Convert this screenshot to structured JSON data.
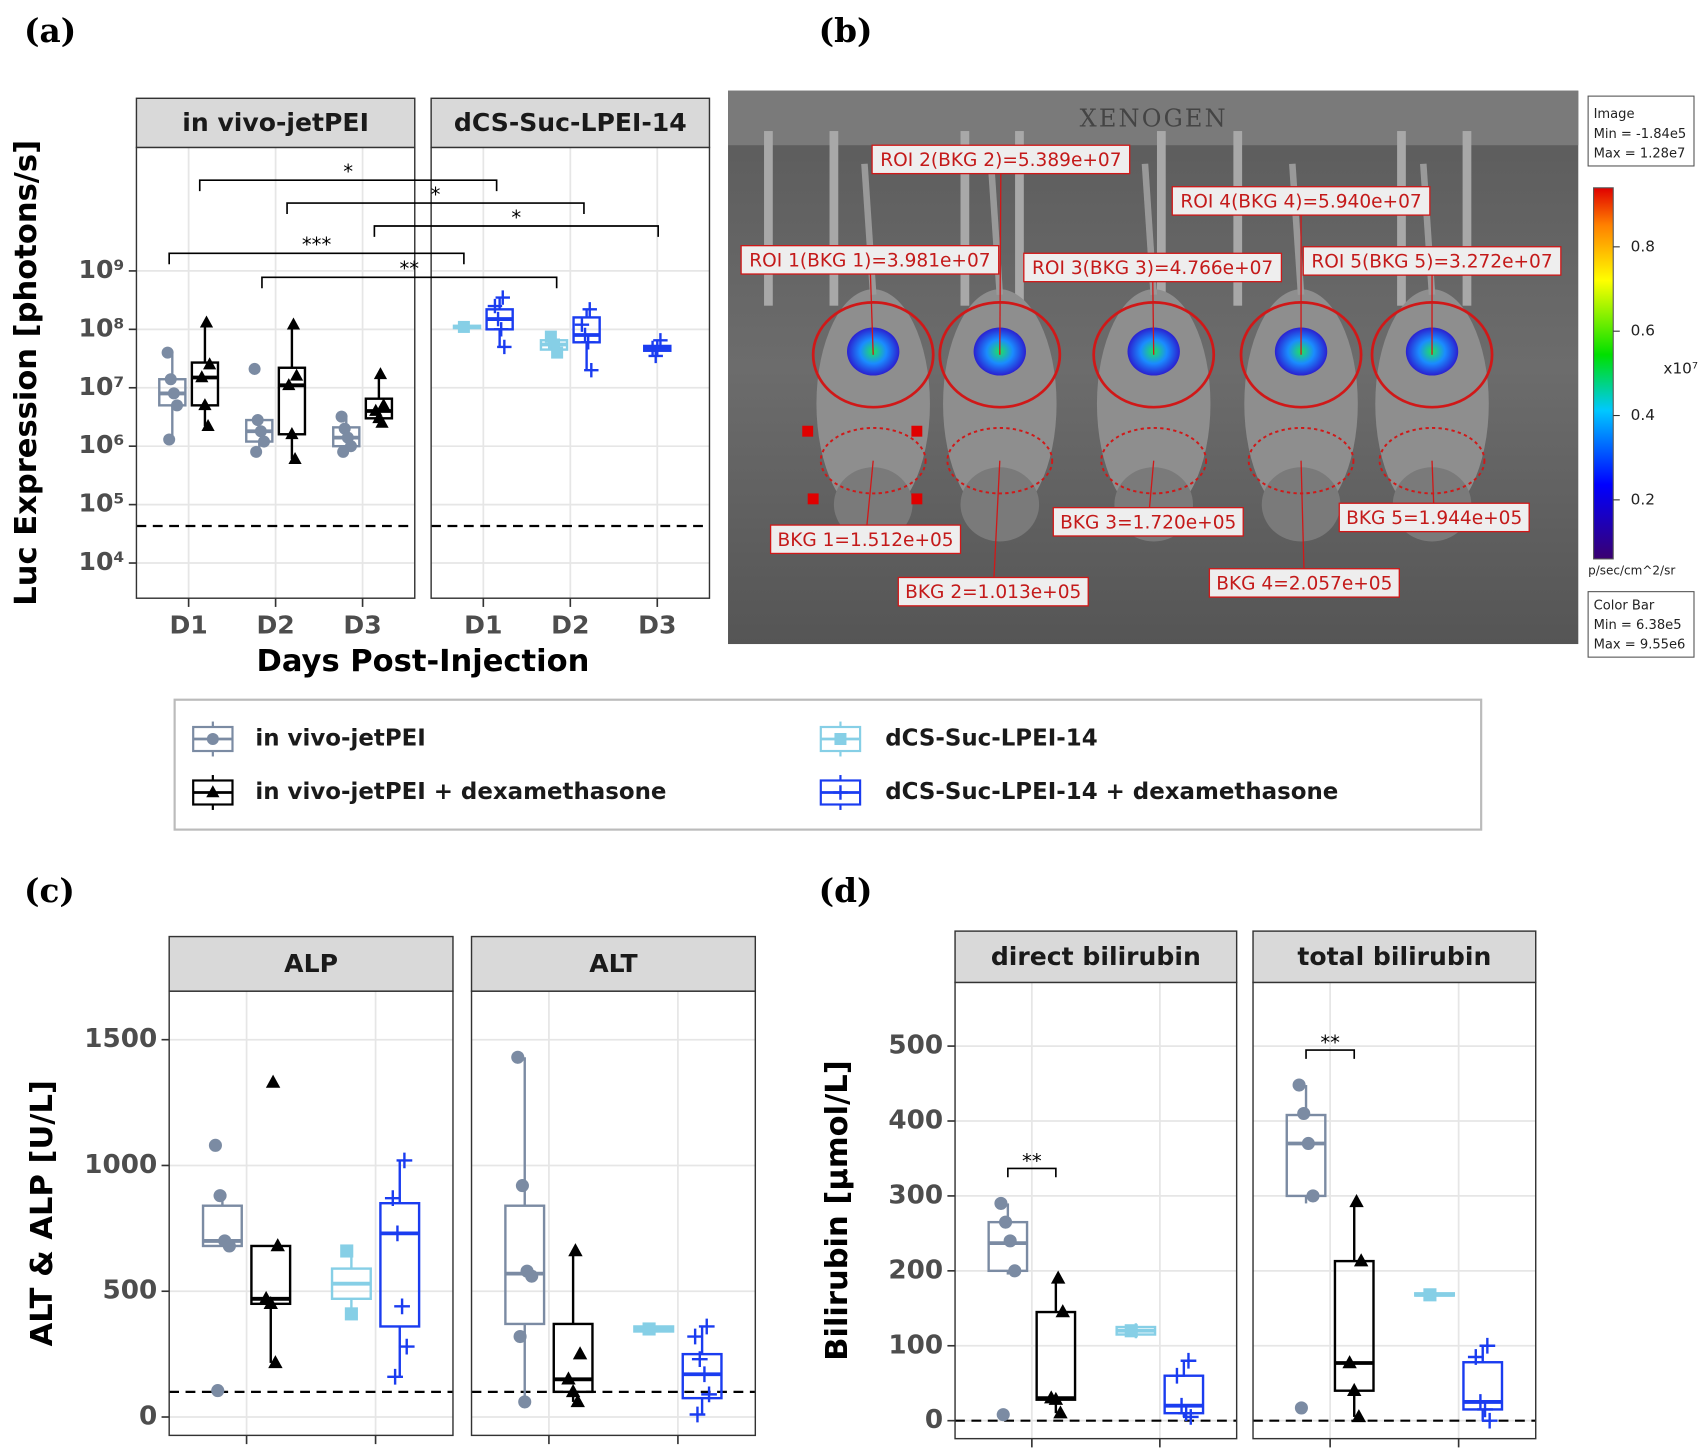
{
  "panel_labels": [
    "(a)",
    "(b)",
    "(c)",
    "(d)"
  ],
  "chart_data": [
    {
      "type": "box",
      "ylabel": "Luc Expression [photons/s]",
      "xlabel": "Days Post-Injection",
      "log": true,
      "ylim": [
        2500,
        130000000000
      ],
      "yticks": [
        {
          "value": 10000,
          "label": "10⁴"
        },
        {
          "value": 100000,
          "label": "10⁵"
        },
        {
          "value": 1000000,
          "label": "10⁶"
        },
        {
          "value": 10000000,
          "label": "10⁷"
        },
        {
          "value": 100000000,
          "label": "10⁸"
        },
        {
          "value": 1000000000,
          "label": "10⁹"
        }
      ],
      "reference_line": 43000,
      "categories": [
        "D1",
        "D2",
        "D3"
      ],
      "series": [
        {
          "name": "in vivo-jetPEI",
          "color": "#7b8ba3",
          "marker": "circle"
        },
        {
          "name": "in vivo-jetPEI + dexamethasone",
          "color": "#000000",
          "marker": "triangle"
        },
        {
          "name": "dCS-Suc-LPEI-14",
          "color": "#86cfe6",
          "marker": "square"
        },
        {
          "name": "dCS-Suc-LPEI-14 + dexamethasone",
          "color": "#1a3cf0",
          "marker": "plus"
        }
      ],
      "facets": [
        {
          "title": "in vivo-jetPEI",
          "boxes": [
            [
              {
                "min": 1300000,
                "q1": 5000000,
                "median": 8000000,
                "q3": 14000000,
                "max": 40000000,
                "points": [
                  40000000,
                  14000000,
                  8000000,
                  5000000,
                  1300000
                ]
              },
              {
                "min": 800000,
                "q1": 1200000,
                "median": 1800000,
                "q3": 2800000,
                "max": 3000000,
                "points": [
                  21000000,
                  2800000,
                  1800000,
                  1200000,
                  800000
                ]
              },
              {
                "min": 800000,
                "q1": 1000000,
                "median": 1400000,
                "q3": 2100000,
                "max": 3200000,
                "points": [
                  3200000,
                  2000000,
                  1400000,
                  1000000,
                  800000
                ]
              }
            ],
            [
              {
                "min": 2200000,
                "q1": 5000000,
                "median": 15000000,
                "q3": 27000000,
                "max": 130000000,
                "points": [
                  130000000,
                  25000000,
                  15000000,
                  5000000,
                  2200000
                ]
              },
              {
                "min": 600000,
                "q1": 1600000,
                "median": 11000000,
                "q3": 22000000,
                "max": 120000000,
                "points": [
                  120000000,
                  16000000,
                  11000000,
                  1600000,
                  600000
                ]
              },
              {
                "min": 2500000,
                "q1": 3000000,
                "median": 4000000,
                "q3": 6500000,
                "max": 17000000,
                "points": [
                  17000000,
                  5000000,
                  4000000,
                  3000000,
                  2500000
                ]
              }
            ],
            [
              null,
              null,
              null
            ],
            [
              null,
              null,
              null
            ]
          ]
        },
        {
          "title": "dCS-Suc-LPEI-14",
          "boxes": [
            [
              null,
              null,
              null
            ],
            [
              null,
              null,
              null
            ],
            [
              {
                "min": 100000000,
                "q1": 105000000,
                "median": 110000000,
                "q3": 115000000,
                "max": 120000000,
                "points": [
                  110000000
                ]
              },
              {
                "min": 40000000,
                "q1": 45000000,
                "median": 55000000,
                "q3": 65000000,
                "max": 75000000,
                "points": [
                  75000000,
                  55000000,
                  40000000
                ]
              },
              null
            ],
            [
              {
                "min": 50000000,
                "q1": 100000000,
                "median": 150000000,
                "q3": 220000000,
                "max": 350000000,
                "points": [
                  350000000,
                  250000000,
                  150000000,
                  100000000,
                  50000000
                ]
              },
              {
                "min": 20000000,
                "q1": 60000000,
                "median": 80000000,
                "q3": 160000000,
                "max": 220000000,
                "points": [
                  220000000,
                  120000000,
                  80000000,
                  60000000,
                  20000000
                ]
              },
              {
                "min": 35000000,
                "q1": 43000000,
                "median": 48000000,
                "q3": 52000000,
                "max": 65000000,
                "points": [
                  65000000,
                  48000000,
                  35000000
                ]
              }
            ]
          ]
        }
      ],
      "annotations": [
        "*",
        "*",
        "*",
        "***",
        "**"
      ]
    },
    {
      "type": "box",
      "ylabel": "ALT & ALP [U/L]",
      "ylim": [
        -73,
        1693
      ],
      "yticks": [
        0,
        500,
        1000,
        1500
      ],
      "reference_line": 100,
      "categories": [
        null,
        null
      ],
      "facets": [
        {
          "title": "ALP",
          "boxes": [
            [
              {
                "min": 680,
                "q1": 680,
                "median": 700,
                "q3": 840,
                "max": 880,
                "points": [
                  1080,
                  880,
                  700,
                  680,
                  105
                ]
              },
              null
            ],
            [
              {
                "min": 215,
                "q1": 450,
                "median": 470,
                "q3": 680,
                "max": 680,
                "points": [
                  1330,
                  680,
                  470,
                  450,
                  215
                ]
              },
              null
            ],
            [
              null,
              {
                "min": 410,
                "q1": 470,
                "median": 530,
                "q3": 590,
                "max": 660,
                "points": [
                  660,
                  410
                ]
              }
            ],
            [
              null,
              {
                "min": 160,
                "q1": 360,
                "median": 730,
                "q3": 850,
                "max": 1020,
                "points": [
                  1020,
                  870,
                  730,
                  440,
                  280,
                  160
                ]
              }
            ]
          ]
        },
        {
          "title": "ALT",
          "boxes": [
            [
              {
                "min": 60,
                "q1": 370,
                "median": 570,
                "q3": 840,
                "max": 1430,
                "points": [
                  1430,
                  920,
                  580,
                  560,
                  320,
                  60
                ]
              },
              null
            ],
            [
              {
                "min": 60,
                "q1": 100,
                "median": 150,
                "q3": 370,
                "max": 660,
                "points": [
                  660,
                  250,
                  150,
                  100,
                  60
                ]
              },
              null
            ],
            [
              null,
              {
                "min": 330,
                "q1": 340,
                "median": 350,
                "q3": 360,
                "max": 360,
                "points": [
                  350
                ]
              }
            ],
            [
              null,
              {
                "min": 10,
                "q1": 75,
                "median": 170,
                "q3": 250,
                "max": 360,
                "points": [
                  360,
                  320,
                  230,
                  170,
                  90,
                  10
                ]
              }
            ]
          ]
        }
      ]
    },
    {
      "type": "box",
      "ylabel": "Bilirubin [µmol/L]",
      "ylim": [
        -24,
        585
      ],
      "yticks": [
        0,
        100,
        200,
        300,
        400,
        500
      ],
      "reference_line": 0,
      "categories": [
        null,
        null
      ],
      "facets": [
        {
          "title": "direct bilirubin",
          "annotations": [
            "**"
          ],
          "boxes": [
            [
              {
                "min": 195,
                "q1": 200,
                "median": 237,
                "q3": 265,
                "max": 290,
                "points": [
                  290,
                  265,
                  240,
                  200,
                  8
                ]
              },
              null
            ],
            [
              {
                "min": 10,
                "q1": 28,
                "median": 30,
                "q3": 145,
                "max": 190,
                "points": [
                  190,
                  145,
                  30,
                  28,
                  10
                ]
              },
              null
            ],
            [
              null,
              {
                "min": 110,
                "q1": 115,
                "median": 120,
                "q3": 125,
                "max": 130,
                "points": [
                  120
                ]
              }
            ],
            [
              null,
              {
                "min": 5,
                "q1": 10,
                "median": 20,
                "q3": 60,
                "max": 80,
                "points": [
                  80,
                  60,
                  20,
                  10,
                  5
                ]
              }
            ]
          ]
        },
        {
          "title": "total bilirubin",
          "annotations": [
            "**"
          ],
          "boxes": [
            [
              {
                "min": 290,
                "q1": 300,
                "median": 370,
                "q3": 408,
                "max": 448,
                "points": [
                  448,
                  410,
                  370,
                  300,
                  17
                ]
              },
              null
            ],
            [
              {
                "min": 5,
                "q1": 40,
                "median": 77,
                "q3": 213,
                "max": 292,
                "points": [
                  292,
                  213,
                  77,
                  40,
                  5
                ]
              },
              null
            ],
            [
              null,
              {
                "min": 165,
                "q1": 167,
                "median": 168,
                "q3": 170,
                "max": 172,
                "points": [
                  168
                ]
              }
            ],
            [
              null,
              {
                "min": 0,
                "q1": 15,
                "median": 25,
                "q3": 78,
                "max": 100,
                "points": [
                  100,
                  85,
                  25,
                  15,
                  0
                ]
              }
            ]
          ]
        }
      ]
    }
  ],
  "image_panel": {
    "brand": "XENOGEN",
    "rois": [
      "ROI 1(BKG 1)=3.981e+07",
      "ROI 2(BKG 2)=5.389e+07",
      "ROI 3(BKG 3)=4.766e+07",
      "ROI 4(BKG 4)=5.940e+07",
      "ROI 5(BKG 5)=3.272e+07"
    ],
    "bkgs": [
      "BKG 1=1.512e+05",
      "BKG 2=1.013e+05",
      "BKG 3=1.720e+05",
      "BKG 4=2.057e+05",
      "BKG 5=1.944e+05"
    ],
    "colorbar": {
      "title_box": [
        "Image",
        "Min = -1.84e5",
        "Max = 1.28e7"
      ],
      "ticks": [
        0.8,
        0.6,
        0.4,
        0.2
      ],
      "range": [
        0.06,
        0.94
      ],
      "multiplier": "x10⁷",
      "unit": "p/sec/cm^2/sr",
      "footer_box": [
        "Color Bar",
        "Min = 6.38e5",
        "Max = 9.55e6"
      ]
    }
  }
}
